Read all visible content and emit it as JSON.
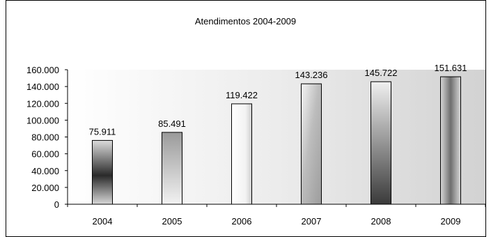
{
  "chart_data": {
    "type": "bar",
    "title": "Atendimentos 2004-2009",
    "xlabel": "",
    "ylabel": "",
    "categories": [
      "2004",
      "2005",
      "2006",
      "2007",
      "2008",
      "2009"
    ],
    "values": [
      75911,
      85491,
      119422,
      143236,
      145722,
      151631
    ],
    "value_labels": [
      "75.911",
      "85.491",
      "119.422",
      "143.236",
      "145.722",
      "151.631"
    ],
    "ylim": [
      0,
      160000
    ],
    "yticks": [
      0,
      20000,
      40000,
      60000,
      80000,
      100000,
      120000,
      140000,
      160000
    ],
    "ytick_labels": [
      "0",
      "20.000",
      "40.000",
      "60.000",
      "80.000",
      "100.000",
      "120.000",
      "140.000",
      "160.000"
    ],
    "grid": false,
    "legend": "none",
    "bar_color": "#b8b8b8",
    "plot_background": "#d9d9d9"
  }
}
